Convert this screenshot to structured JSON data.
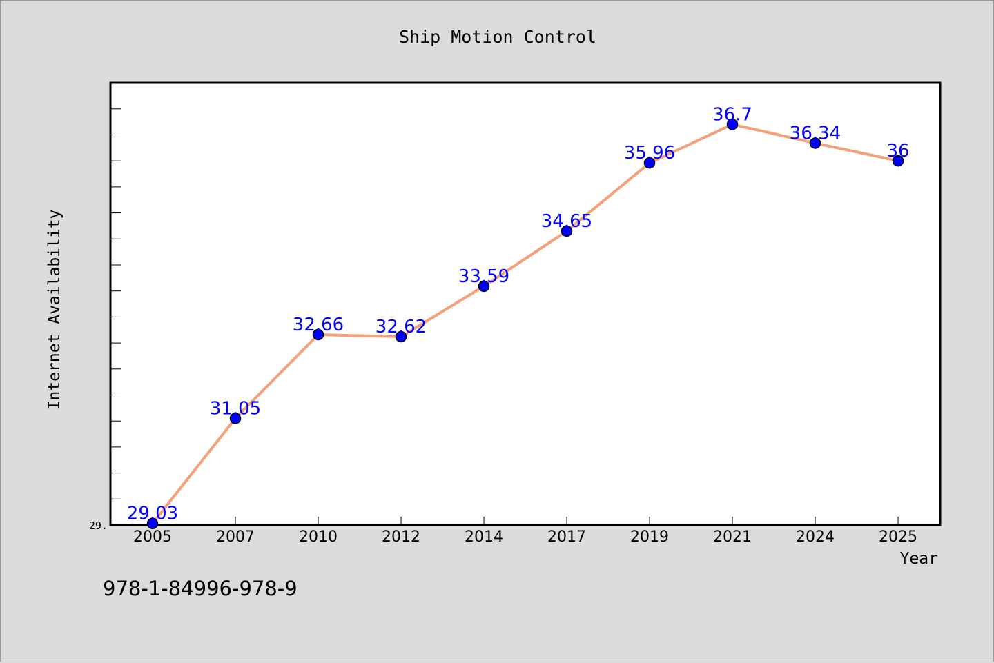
{
  "chart_data": {
    "type": "line",
    "title": "Ship Motion Control",
    "xlabel": "Year",
    "ylabel": "Internet Availability",
    "categories": [
      "2005",
      "2007",
      "2010",
      "2012",
      "2014",
      "2017",
      "2019",
      "2021",
      "2024",
      "2025"
    ],
    "series": [
      {
        "values": [
          29.03,
          31.05,
          32.66,
          32.62,
          33.59,
          34.65,
          35.96,
          36.7,
          36.34,
          36
        ]
      }
    ],
    "data_labels": [
      "29.03",
      "31.05",
      "32.66",
      "32.62",
      "33.59",
      "34.65",
      "35.96",
      "36.7",
      "36.34",
      "36"
    ],
    "y_tick_label": "29.",
    "ylim": [
      29.0,
      37.5
    ],
    "grid": false,
    "legend": "none",
    "colors": {
      "line": "#f4a07a",
      "marker": "#0000ff",
      "label": "#0000ff",
      "background": "#dcdcdc",
      "plot": "#ffffff"
    }
  },
  "footer": {
    "isbn": "978-1-84996-978-9"
  }
}
